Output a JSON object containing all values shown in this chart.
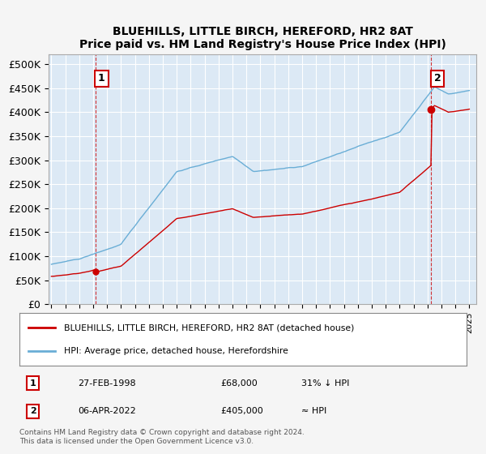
{
  "title": "BLUEHILLS, LITTLE BIRCH, HEREFORD, HR2 8AT",
  "subtitle": "Price paid vs. HM Land Registry's House Price Index (HPI)",
  "fig_bg_color": "#f5f5f5",
  "plot_bg_color": "#dce9f5",
  "legend_label_red": "BLUEHILLS, LITTLE BIRCH, HEREFORD, HR2 8AT (detached house)",
  "legend_label_blue": "HPI: Average price, detached house, Herefordshire",
  "annotation1_label": "1",
  "annotation1_date": "27-FEB-1998",
  "annotation1_price": "£68,000",
  "annotation1_hpi": "31% ↓ HPI",
  "annotation1_year": 1998.15,
  "annotation1_value": 68000,
  "annotation2_label": "2",
  "annotation2_date": "06-APR-2022",
  "annotation2_price": "£405,000",
  "annotation2_hpi": "≈ HPI",
  "annotation2_year": 2022.27,
  "annotation2_value": 405000,
  "xlim": [
    1994.8,
    2025.5
  ],
  "ylim": [
    0,
    520000
  ],
  "yticks": [
    0,
    50000,
    100000,
    150000,
    200000,
    250000,
    300000,
    350000,
    400000,
    450000,
    500000
  ],
  "ytick_labels": [
    "£0",
    "£50K",
    "£100K",
    "£150K",
    "£200K",
    "£250K",
    "£300K",
    "£350K",
    "£400K",
    "£450K",
    "£500K"
  ],
  "grid_color": "#ffffff",
  "red_line_color": "#cc0000",
  "blue_line_color": "#6aaed6",
  "footnote": "Contains HM Land Registry data © Crown copyright and database right 2024.\nThis data is licensed under the Open Government Licence v3.0."
}
